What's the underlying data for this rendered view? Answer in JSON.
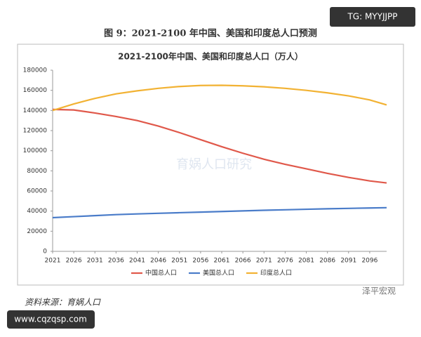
{
  "figure_title": "图 9：2021-2100 年中国、美国和印度总人口预测",
  "source": "资料来源：育娲人口",
  "watermarks": {
    "top_badge": "TG: MYYJJPP",
    "bottom_badge": "www.cqzqsp.com",
    "account": "泽平宏观",
    "center": "育娲人口研究"
  },
  "chart_data": {
    "type": "line",
    "title": "2021-2100年中国、美国和印度总人口（万人）",
    "x": [
      2021,
      2026,
      2031,
      2036,
      2041,
      2046,
      2051,
      2056,
      2061,
      2066,
      2071,
      2076,
      2081,
      2086,
      2091,
      2096,
      2100
    ],
    "series": [
      {
        "name": "中国总人口",
        "color": "#e0584a",
        "values": [
          141000,
          140500,
          137500,
          134000,
          130000,
          124500,
          118000,
          111000,
          104000,
          97500,
          91500,
          86500,
          82000,
          77500,
          73500,
          70000,
          68000
        ]
      },
      {
        "name": "美国总人口",
        "color": "#4a7cc9",
        "values": [
          33500,
          34500,
          35500,
          36500,
          37200,
          37800,
          38400,
          39000,
          39600,
          40200,
          40800,
          41300,
          41800,
          42300,
          42700,
          43100,
          43400
        ]
      },
      {
        "name": "印度总人口",
        "color": "#f2b233",
        "values": [
          140000,
          146500,
          152000,
          156500,
          159500,
          162000,
          163800,
          164800,
          165000,
          164500,
          163500,
          162000,
          160000,
          157500,
          154500,
          150500,
          145500
        ]
      }
    ],
    "xlim": [
      2021,
      2100
    ],
    "xticks": [
      2021,
      2026,
      2031,
      2036,
      2041,
      2046,
      2051,
      2056,
      2061,
      2066,
      2071,
      2076,
      2081,
      2086,
      2091,
      2096
    ],
    "ylim": [
      0,
      180000
    ],
    "yticks": [
      0,
      20000,
      40000,
      60000,
      80000,
      100000,
      120000,
      140000,
      160000,
      180000
    ],
    "grid": false,
    "legend": "bottom"
  }
}
